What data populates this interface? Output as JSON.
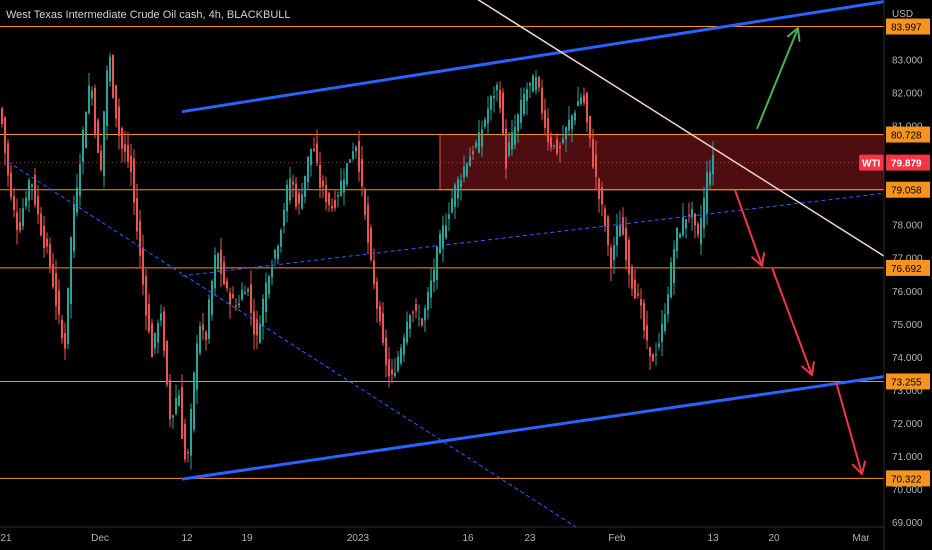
{
  "header": {
    "title": "West Texas Intermediate Crude Oil cash, 4h, BLACKBULL"
  },
  "chart_data": {
    "type": "candlestick",
    "currency_label": "USD",
    "ylim": [
      68.85,
      84.8
    ],
    "y_ticks": [
      69,
      70,
      71,
      72,
      73,
      74,
      75,
      76,
      77,
      78,
      79,
      80,
      81,
      82,
      83
    ],
    "y_tick_labels": [
      "69.000",
      "70.000",
      "71.000",
      "72.000",
      "73.000",
      "74.000",
      "75.000",
      "76.000",
      "77.000",
      "78.000",
      "79.000",
      "80.000",
      "81.000",
      "82.000",
      "83.000"
    ],
    "x_tick_labels": [
      "21",
      "Dec",
      "12",
      "19",
      "2023",
      "16",
      "23",
      "Feb",
      "13",
      "20",
      "Mar"
    ],
    "symbol": "WTI",
    "current_price": 79.879,
    "current_price_label": "79.879",
    "levels": [
      {
        "value": 83.997,
        "label": "83.997"
      },
      {
        "value": 80.728,
        "label": "80.728"
      },
      {
        "value": 79.058,
        "label": "79.058"
      },
      {
        "value": 76.692,
        "label": "76.692"
      },
      {
        "value": 73.255,
        "label": "73.255"
      },
      {
        "value": 70.322,
        "label": "70.322"
      }
    ],
    "zone": {
      "high": 80.728,
      "low": 79.058
    },
    "path_points": [
      [
        81.5,
        0
      ],
      [
        79.0,
        10
      ],
      [
        77.8,
        18
      ],
      [
        79.5,
        30
      ],
      [
        78.0,
        40
      ],
      [
        76.8,
        50
      ],
      [
        74.2,
        64
      ],
      [
        78.0,
        72
      ],
      [
        82.5,
        90
      ],
      [
        79.5,
        100
      ],
      [
        83.2,
        108
      ],
      [
        80.5,
        120
      ],
      [
        79.8,
        130
      ],
      [
        76.5,
        142
      ],
      [
        74.0,
        152
      ],
      [
        75.5,
        160
      ],
      [
        72.0,
        170
      ],
      [
        73.0,
        178
      ],
      [
        70.5,
        186
      ],
      [
        72.5,
        192
      ],
      [
        75.0,
        198
      ],
      [
        74.5,
        205
      ],
      [
        77.2,
        216
      ],
      [
        76.0,
        226
      ],
      [
        75.5,
        236
      ],
      [
        76.3,
        246
      ],
      [
        74.5,
        256
      ],
      [
        76.5,
        268
      ],
      [
        77.5,
        278
      ],
      [
        79.5,
        290
      ],
      [
        78.5,
        298
      ],
      [
        80.5,
        312
      ],
      [
        79.2,
        320
      ],
      [
        78.5,
        332
      ],
      [
        79.5,
        344
      ],
      [
        80.6,
        356
      ],
      [
        79.0,
        362
      ],
      [
        77.0,
        370
      ],
      [
        74.5,
        382
      ],
      [
        73.2,
        390
      ],
      [
        74.2,
        400
      ],
      [
        75.5,
        410
      ],
      [
        75.0,
        422
      ],
      [
        77.5,
        440
      ],
      [
        79.0,
        454
      ],
      [
        80.0,
        468
      ],
      [
        80.5,
        478
      ],
      [
        81.5,
        488
      ],
      [
        82.3,
        498
      ],
      [
        80.0,
        505
      ],
      [
        80.9,
        515
      ],
      [
        82.0,
        525
      ],
      [
        82.4,
        536
      ],
      [
        80.6,
        548
      ],
      [
        80.2,
        558
      ],
      [
        81.0,
        568
      ],
      [
        82.0,
        582
      ],
      [
        80.5,
        590
      ],
      [
        79.0,
        598
      ],
      [
        78.2,
        604
      ],
      [
        76.8,
        610
      ],
      [
        78.2,
        620
      ],
      [
        76.5,
        630
      ],
      [
        75.5,
        640
      ],
      [
        73.8,
        650
      ],
      [
        74.5,
        660
      ],
      [
        76.0,
        668
      ],
      [
        77.5,
        675
      ],
      [
        78.0,
        682
      ],
      [
        78.5,
        690
      ],
      [
        77.5,
        697
      ],
      [
        78.5,
        703
      ],
      [
        79.5,
        707
      ],
      [
        79.879,
        712
      ]
    ],
    "trendlines": [
      {
        "name": "upper-channel",
        "from": [
          182,
          81.42
        ],
        "to": [
          884,
          84.75
        ]
      },
      {
        "name": "lower-channel",
        "from": [
          182,
          70.3
        ],
        "to": [
          884,
          73.4
        ]
      },
      {
        "name": "mid-channel",
        "from": [
          182,
          76.45
        ],
        "to": [
          884,
          78.95
        ]
      },
      {
        "name": "descending-dashed",
        "from": [
          8,
          79.9
        ],
        "to": [
          576,
          68.85
        ]
      },
      {
        "name": "descending-resistance",
        "from": [
          476,
          84.85
        ],
        "to": [
          884,
          77.05
        ]
      }
    ],
    "arrows": [
      {
        "color": "green",
        "from": [
          757,
          80.9
        ],
        "to": [
          798,
          83.95
        ]
      },
      {
        "color": "red",
        "from": [
          735,
          79.05
        ],
        "to": [
          762,
          76.75
        ]
      },
      {
        "color": "red",
        "from": [
          772,
          76.7
        ],
        "to": [
          812,
          73.45
        ]
      },
      {
        "color": "red",
        "from": [
          836,
          73.25
        ],
        "to": [
          862,
          70.45
        ]
      }
    ],
    "colors": {
      "background": "#000000",
      "up": "#26a69a",
      "down": "#ef5350",
      "level": "#f7941d",
      "channel": "#2962ff",
      "zone_fill": "#5a0f14",
      "zone_border": "#ef5350",
      "resistance": "#f2d5cd",
      "arrow_green": "#4caf50",
      "arrow_red": "#f23645"
    }
  }
}
